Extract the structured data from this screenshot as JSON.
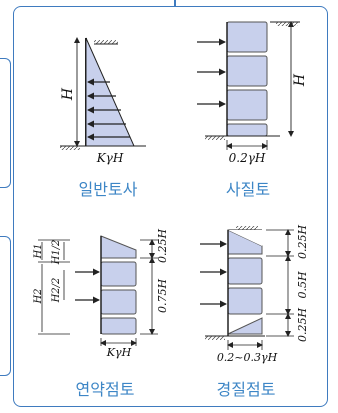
{
  "diagrams": {
    "general": {
      "caption": "일반토사",
      "label_h": "H",
      "label_base": "KγH"
    },
    "sand": {
      "caption": "사질토",
      "label_h": "H",
      "label_base": "0.2γH"
    },
    "soft_clay": {
      "caption": "연약점토",
      "label_h1": "H1",
      "label_h1_half": "H1/2",
      "label_h2": "H2",
      "label_h2_half": "H2/2",
      "label_top": "0.25H",
      "label_mid": "0.75H",
      "label_base": "KγH"
    },
    "stiff_clay": {
      "caption": "경질점토",
      "label_top": "0.25H",
      "label_mid": "0.5H",
      "label_bottom": "0.25H",
      "label_base": "0.2~0.3γH"
    }
  },
  "colors": {
    "fill": "#c8d0ec",
    "stroke": "#2a2a2a",
    "border": "#3f7bbf",
    "caption": "#3d86c6"
  }
}
